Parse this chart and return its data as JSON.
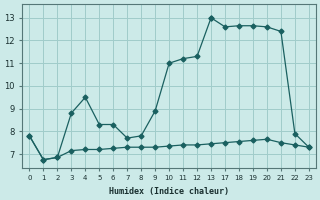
{
  "xlabel": "Humidex (Indice chaleur)",
  "bg_color": "#cceae8",
  "grid_color": "#a0ccca",
  "line_color": "#1a6060",
  "xtick_labels": [
    "0",
    "1",
    "2",
    "3",
    "4",
    "5",
    "6",
    "7",
    "8",
    "9",
    "10",
    "11",
    "12",
    "13",
    "17",
    "18",
    "19",
    "20",
    "21",
    "22",
    "23"
  ],
  "yticks": [
    7,
    8,
    9,
    10,
    11,
    12,
    13
  ],
  "ylim": [
    6.4,
    13.6
  ],
  "series": [
    {
      "xi": [
        0,
        1,
        2,
        3,
        4,
        5,
        6,
        7,
        8,
        9,
        10,
        11,
        12,
        13,
        14,
        15,
        16,
        17,
        18,
        19,
        20
      ],
      "y": [
        7.8,
        6.75,
        6.85,
        7.15,
        7.2,
        7.2,
        7.25,
        7.3,
        7.3,
        7.3,
        7.35,
        7.4,
        7.4,
        7.45,
        7.5,
        7.55,
        7.6,
        7.65,
        7.5,
        7.4,
        7.3
      ]
    },
    {
      "xi": [
        0,
        1,
        2,
        3,
        4,
        5,
        6,
        7,
        8,
        9,
        10,
        11,
        12,
        13
      ],
      "y": [
        7.8,
        6.75,
        6.85,
        8.8,
        9.5,
        8.3,
        8.3,
        7.7,
        7.8,
        8.9,
        11.0,
        11.2,
        11.3,
        13.0
      ]
    },
    {
      "xi": [
        13,
        14,
        15,
        16,
        17,
        18,
        19,
        20
      ],
      "y": [
        13.0,
        12.6,
        12.65,
        12.65,
        12.6,
        12.4,
        7.9,
        7.3
      ]
    }
  ]
}
